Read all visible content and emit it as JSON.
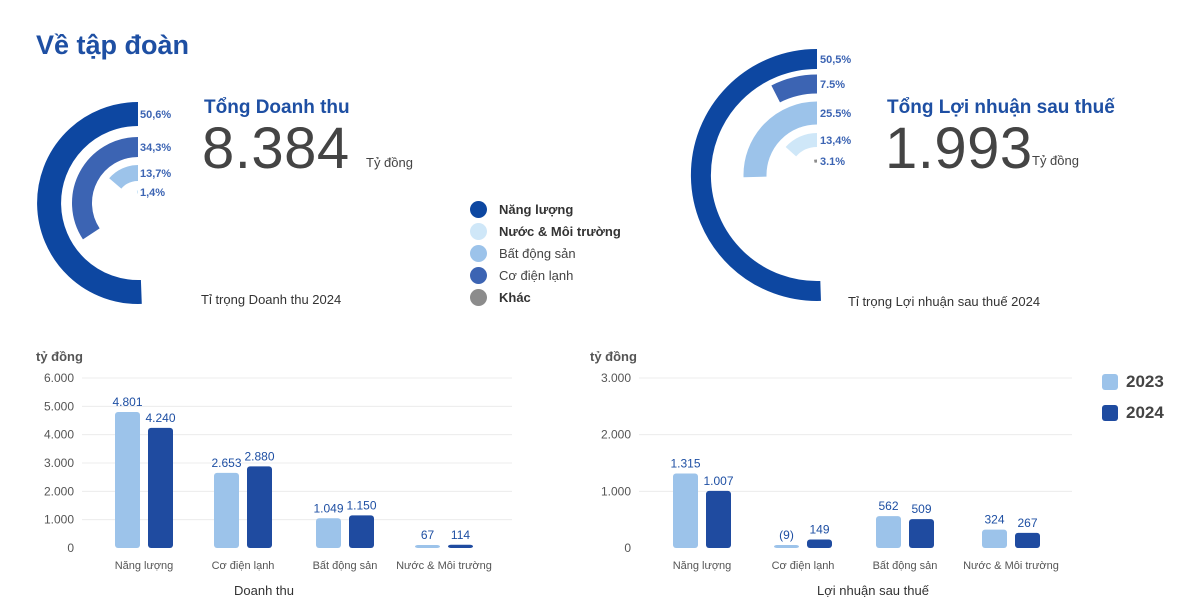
{
  "page": {
    "title": "Về tập đoàn"
  },
  "colors": {
    "nang_luong": "#0d47a1",
    "nuoc": "#cfe7f8",
    "bat_dong_san": "#9cc3ea",
    "co_dien_lanh": "#3c64b3",
    "khac": "#8c8c8c",
    "y2023": "#9cc3ea",
    "y2024": "#1f4ba0"
  },
  "revenue_summary": {
    "title": "Tổng Doanh thu",
    "value": "8.384",
    "unit": "Tỷ đồng",
    "caption": "Tỉ trọng Doanh thu 2024"
  },
  "profit_summary": {
    "title": "Tổng Lợi nhuận sau thuế",
    "value": "1.993",
    "unit": "Tỷ đồng",
    "caption": "Tỉ trọng Lợi nhuận sau thuế 2024"
  },
  "legend": [
    {
      "label": "Năng lượng",
      "color": "#0d47a1",
      "bold": true
    },
    {
      "label": "Nước & Môi trường",
      "color": "#cfe7f8",
      "bold": true
    },
    {
      "label": "Bất động sản",
      "color": "#9cc3ea",
      "bold": false
    },
    {
      "label": "Cơ điện lạnh",
      "color": "#3c64b3",
      "bold": false
    },
    {
      "label": "Khác",
      "color": "#8c8c8c",
      "bold": true
    }
  ],
  "chart_data": [
    {
      "type": "pie",
      "title": "Tỉ trọng Doanh thu 2024",
      "style": "radial-bar",
      "slices": [
        {
          "name": "Năng lượng",
          "value": 50.6,
          "label": "50,6%"
        },
        {
          "name": "Cơ điện lạnh",
          "value": 34.3,
          "label": "34,3%"
        },
        {
          "name": "Bất động sản",
          "value": 13.7,
          "label": "13,7%"
        },
        {
          "name": "Nước & Môi trường",
          "value": 1.4,
          "label": "1,4%"
        }
      ]
    },
    {
      "type": "pie",
      "title": "Tỉ trọng Lợi nhuận sau thuế 2024",
      "style": "radial-bar",
      "slices": [
        {
          "name": "Năng lượng",
          "value": 50.5,
          "label": "50,5%"
        },
        {
          "name": "Cơ điện lạnh",
          "value": 7.5,
          "label": "7.5%"
        },
        {
          "name": "Bất động sản",
          "value": 25.5,
          "label": "25.5%"
        },
        {
          "name": "Nước & Môi trường",
          "value": 13.4,
          "label": "13,4%"
        },
        {
          "name": "Khác",
          "value": 3.1,
          "label": "3.1%"
        }
      ]
    },
    {
      "type": "bar",
      "title": "Doanh thu",
      "xlabel": "Doanh thu",
      "ylabel": "tỷ đồng",
      "ylim": [
        0,
        6000
      ],
      "yticks": [
        0,
        1000,
        2000,
        3000,
        4000,
        5000,
        6000
      ],
      "ytick_labels": [
        "0",
        "1.000",
        "2.000",
        "3.000",
        "4.000",
        "5.000",
        "6.000"
      ],
      "categories": [
        "Năng lượng",
        "Cơ điện lạnh",
        "Bất động sản",
        "Nước & Môi trường"
      ],
      "series": [
        {
          "name": "2023",
          "values": [
            4801,
            2653,
            1049,
            67
          ],
          "labels": [
            "4.801",
            "2.653",
            "1.049",
            "67"
          ]
        },
        {
          "name": "2024",
          "values": [
            4240,
            2880,
            1150,
            114
          ],
          "labels": [
            "4.240",
            "2.880",
            "1.150",
            "114"
          ]
        }
      ]
    },
    {
      "type": "bar",
      "title": "Lợi nhuận sau thuế",
      "xlabel": "Lợi nhuận sau thuế",
      "ylabel": "tỷ đồng",
      "ylim": [
        0,
        3000
      ],
      "yticks": [
        0,
        1000,
        2000,
        3000
      ],
      "ytick_labels": [
        "0",
        "1.000",
        "2.000",
        "3.000"
      ],
      "categories": [
        "Năng lượng",
        "Cơ điện lạnh",
        "Bất động sản",
        "Nước & Môi trường"
      ],
      "series": [
        {
          "name": "2023",
          "values": [
            1315,
            -9,
            562,
            324
          ],
          "labels": [
            "1.315",
            "(9)",
            "562",
            "324"
          ]
        },
        {
          "name": "2024",
          "values": [
            1007,
            149,
            509,
            267
          ],
          "labels": [
            "1.007",
            "149",
            "509",
            "267"
          ]
        }
      ]
    }
  ],
  "year_legend": [
    {
      "label": "2023",
      "color": "#9cc3ea"
    },
    {
      "label": "2024",
      "color": "#1f4ba0"
    }
  ]
}
